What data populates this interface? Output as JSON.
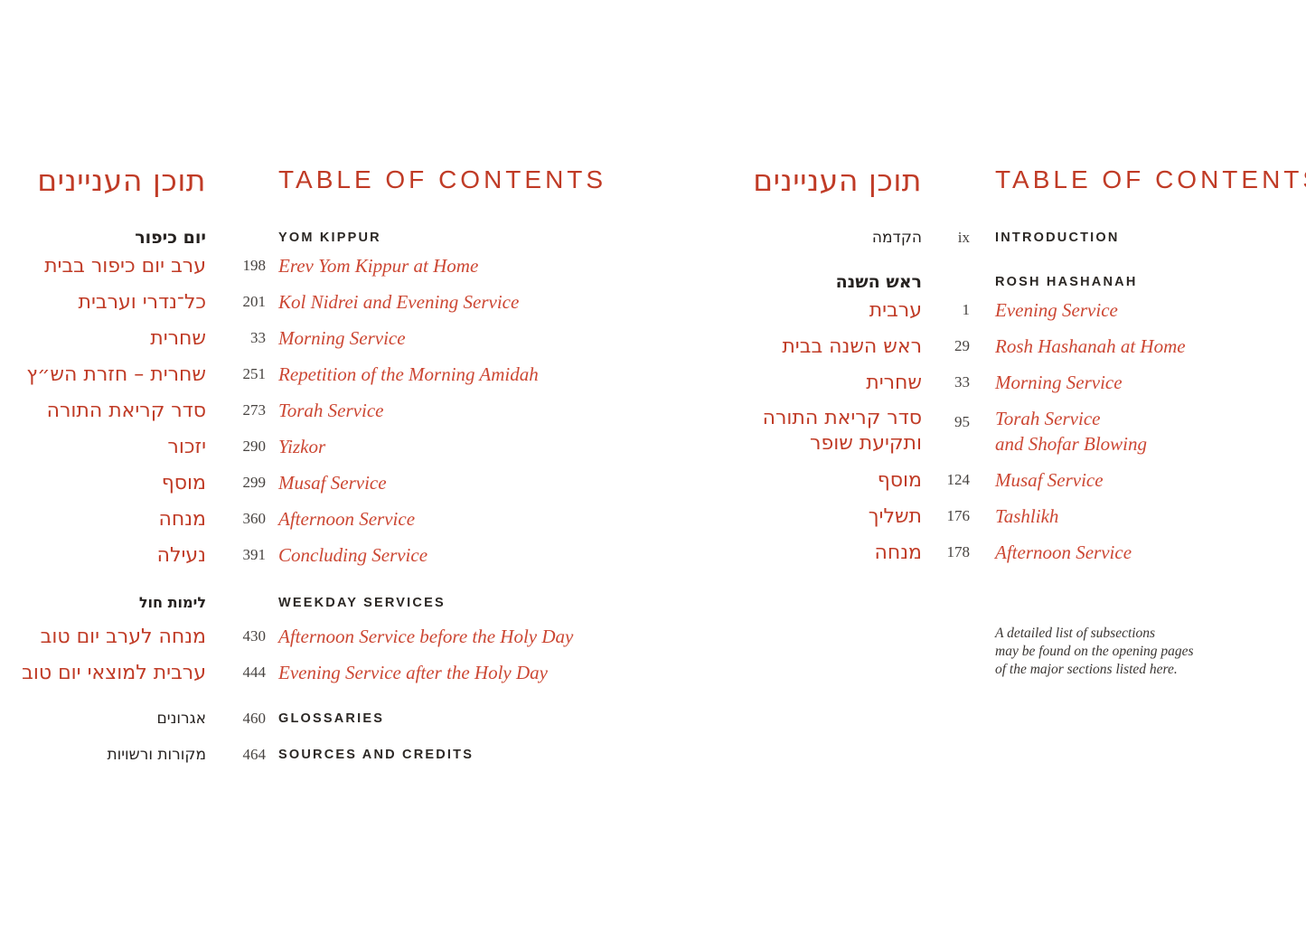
{
  "colors": {
    "accent_red": "#c03b26",
    "entry_red": "#cc4733",
    "text_black": "#262220",
    "number_gray": "#474340",
    "background": "#ffffff"
  },
  "left_page": {
    "title_hebrew": "תוכן העניינים",
    "title_english": "TABLE OF CONTENTS",
    "yom_kippur": {
      "header_hebrew": "יום כיפור",
      "header_english": "YOM KIPPUR",
      "entries": [
        {
          "hebrew": "ערב יום כיפור בבית",
          "page": "198",
          "english": "Erev Yom Kippur at Home"
        },
        {
          "hebrew": "כל־נדרי וערבית",
          "page": "201",
          "english": "Kol Nidrei and Evening Service"
        },
        {
          "hebrew": "שחרית",
          "page": "33",
          "english": "Morning Service"
        },
        {
          "hebrew": "שחרית – חזרת הש״ץ",
          "page": "251",
          "english": "Repetition of the Morning Amidah"
        },
        {
          "hebrew": "סדר קריאת התורה",
          "page": "273",
          "english": "Torah Service"
        },
        {
          "hebrew": "יזכור",
          "page": "290",
          "english": "Yizkor"
        },
        {
          "hebrew": "מוסף",
          "page": "299",
          "english": "Musaf Service"
        },
        {
          "hebrew": "מנחה",
          "page": "360",
          "english": "Afternoon Service"
        },
        {
          "hebrew": "נעילה",
          "page": "391",
          "english": "Concluding Service"
        }
      ]
    },
    "weekday": {
      "header_hebrew": "לימות חול",
      "header_english": "WEEKDAY SERVICES",
      "entries": [
        {
          "hebrew": "מנחה לערב יום טוב",
          "page": "430",
          "english": "Afternoon Service before the Holy Day"
        },
        {
          "hebrew": "ערבית למוצאי יום טוב",
          "page": "444",
          "english": "Evening Service after the Holy Day"
        }
      ]
    },
    "backmatter": [
      {
        "hebrew": "אגרונים",
        "page": "460",
        "english": "GLOSSARIES"
      },
      {
        "hebrew": "מקורות ורשויות",
        "page": "464",
        "english": "SOURCES AND CREDITS"
      }
    ]
  },
  "right_page": {
    "title_hebrew": "תוכן העניינים",
    "title_english": "TABLE OF CONTENTS",
    "introduction": {
      "hebrew": "הקדמה",
      "page": "ix",
      "english": "INTRODUCTION"
    },
    "rosh_hashanah": {
      "header_hebrew": "ראש השנה",
      "header_english": "ROSH HASHANAH",
      "entries": [
        {
          "hebrew": "ערבית",
          "page": "1",
          "english": "Evening Service"
        },
        {
          "hebrew": "ראש השנה בבית",
          "page": "29",
          "english": "Rosh Hashanah at Home"
        },
        {
          "hebrew": "שחרית",
          "page": "33",
          "english": "Morning Service"
        },
        {
          "hebrew": "סדר קריאת התורה",
          "hebrew_line2": "ותקיעת שופר",
          "page": "95",
          "english": "Torah Service",
          "english_line2": "and Shofar Blowing"
        },
        {
          "hebrew": "מוסף",
          "page": "124",
          "english": "Musaf Service"
        },
        {
          "hebrew": "תשליך",
          "page": "176",
          "english": "Tashlikh"
        },
        {
          "hebrew": "מנחה",
          "page": "178",
          "english": "Afternoon Service"
        }
      ]
    },
    "note_lines": [
      "A detailed list of subsections",
      "may be found on the opening pages",
      "of the major sections listed here."
    ]
  }
}
